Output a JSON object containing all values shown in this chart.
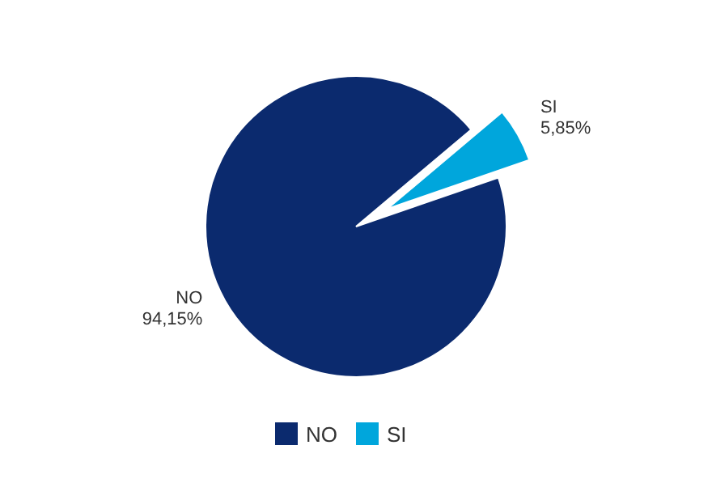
{
  "chart_data": {
    "type": "pie",
    "categories": [
      "NO",
      "SI"
    ],
    "values": [
      94.15,
      5.85
    ],
    "value_labels": [
      "94,15%",
      "5,85%"
    ],
    "colors": [
      "#0b2a6e",
      "#00a6dc"
    ],
    "legend": "bottom"
  }
}
